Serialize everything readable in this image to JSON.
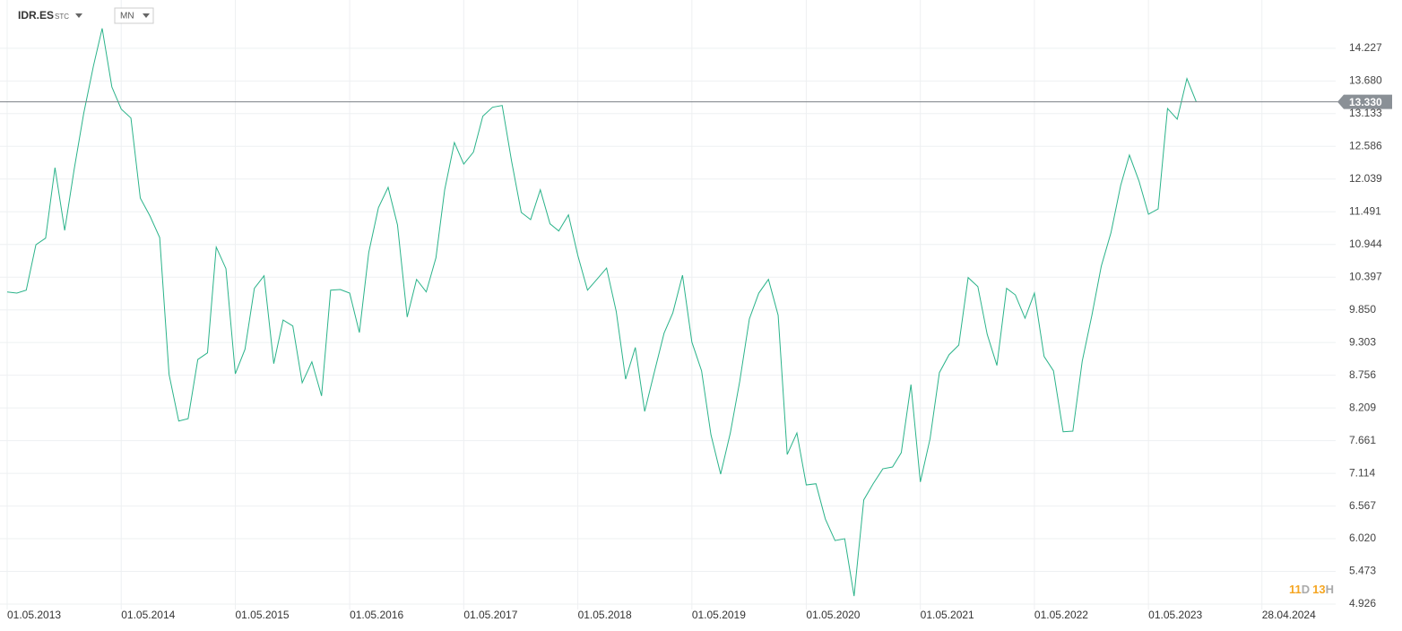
{
  "header": {
    "symbol": "IDR.ES",
    "market": "STC",
    "interval": "MN"
  },
  "countdown": {
    "days": "11",
    "days_unit": "D",
    "hours": "13",
    "hours_unit": "H"
  },
  "chart_data": {
    "type": "line",
    "x": [
      "2013-05-01",
      "2013-06-01",
      "2013-07-01",
      "2013-08-01",
      "2013-09-01",
      "2013-10-01",
      "2013-11-01",
      "2013-12-01",
      "2014-01-01",
      "2014-02-01",
      "2014-03-01",
      "2014-04-01",
      "2014-05-01",
      "2014-06-01",
      "2014-07-01",
      "2014-08-01",
      "2014-09-01",
      "2014-10-01",
      "2014-11-01",
      "2014-12-01",
      "2015-01-01",
      "2015-02-01",
      "2015-03-01",
      "2015-04-01",
      "2015-05-01",
      "2015-06-01",
      "2015-07-01",
      "2015-08-01",
      "2015-09-01",
      "2015-10-01",
      "2015-11-01",
      "2015-12-01",
      "2016-01-01",
      "2016-02-01",
      "2016-03-01",
      "2016-04-01",
      "2016-05-01",
      "2016-06-01",
      "2016-07-01",
      "2016-08-01",
      "2016-09-01",
      "2016-10-01",
      "2016-11-01",
      "2016-12-01",
      "2017-01-01",
      "2017-02-01",
      "2017-03-01",
      "2017-04-01",
      "2017-05-01",
      "2017-06-01",
      "2017-07-01",
      "2017-08-01",
      "2017-09-01",
      "2017-10-01",
      "2017-11-01",
      "2017-12-01",
      "2018-01-01",
      "2018-02-01",
      "2018-03-01",
      "2018-04-01",
      "2018-05-01",
      "2018-06-01",
      "2018-07-01",
      "2018-08-01",
      "2018-09-01",
      "2018-10-01",
      "2018-11-01",
      "2018-12-01",
      "2019-01-01",
      "2019-02-01",
      "2019-03-01",
      "2019-04-01",
      "2019-05-01",
      "2019-06-01",
      "2019-07-01",
      "2019-08-01",
      "2019-09-01",
      "2019-10-01",
      "2019-11-01",
      "2019-12-01",
      "2020-01-01",
      "2020-02-01",
      "2020-03-01",
      "2020-04-01",
      "2020-05-01",
      "2020-06-01",
      "2020-07-01",
      "2020-08-01",
      "2020-09-01",
      "2020-10-01",
      "2020-11-01",
      "2020-12-01",
      "2021-01-01",
      "2021-02-01",
      "2021-03-01",
      "2021-04-01",
      "2021-05-01",
      "2021-06-01",
      "2021-07-01",
      "2021-08-01",
      "2021-09-01",
      "2021-10-01",
      "2021-11-01",
      "2021-12-01",
      "2022-01-01",
      "2022-02-01",
      "2022-03-01",
      "2022-04-01",
      "2022-05-01",
      "2022-06-01",
      "2022-07-01",
      "2022-08-01",
      "2022-09-01",
      "2022-10-01",
      "2022-11-01",
      "2022-12-01",
      "2023-01-01",
      "2023-02-01",
      "2023-03-01",
      "2023-04-01",
      "2023-05-01",
      "2023-06-01",
      "2023-07-01",
      "2023-08-01",
      "2023-09-01",
      "2023-10-01"
    ],
    "series": [
      {
        "name": "IDR.ES",
        "color": "#2bb38a",
        "values": [
          10.15,
          10.13,
          10.18,
          10.94,
          11.05,
          12.23,
          11.18,
          12.19,
          13.14,
          13.93,
          14.56,
          13.58,
          13.21,
          13.06,
          11.72,
          11.42,
          11.06,
          8.77,
          7.99,
          8.03,
          9.02,
          9.13,
          10.9,
          10.54,
          8.78,
          9.19,
          10.21,
          10.42,
          8.95,
          9.68,
          9.58,
          8.63,
          8.98,
          8.41,
          10.18,
          10.19,
          10.13,
          9.47,
          10.81,
          11.56,
          11.9,
          11.27,
          9.73,
          10.36,
          10.15,
          10.72,
          11.86,
          12.65,
          12.29,
          12.49,
          13.09,
          13.24,
          13.27,
          12.34,
          11.48,
          11.36,
          11.86,
          11.29,
          11.17,
          11.44,
          10.76,
          10.18,
          10.36,
          10.55,
          9.82,
          8.69,
          9.22,
          8.15,
          8.81,
          9.46,
          9.8,
          10.43,
          9.31,
          8.83,
          7.76,
          7.1,
          7.79,
          8.65,
          9.7,
          10.13,
          10.36,
          9.76,
          7.43,
          7.79,
          6.92,
          6.94,
          6.35,
          5.99,
          6.02,
          5.06,
          6.67,
          6.94,
          7.19,
          7.22,
          7.46,
          8.6,
          6.97,
          7.69,
          8.8,
          9.1,
          9.26,
          10.39,
          10.24,
          9.44,
          8.92,
          10.21,
          10.1,
          9.71,
          10.13,
          9.07,
          8.83,
          7.81,
          7.82,
          8.99,
          9.76,
          10.58,
          11.14,
          11.93,
          12.44,
          12,
          11.45,
          11.54,
          13.22,
          13.04,
          13.72,
          13.33
        ]
      }
    ],
    "last_price": {
      "value": 13.33,
      "label": "13.330"
    },
    "xlim": [
      "2013-05-01",
      "2024-12-20"
    ],
    "xticks": [
      {
        "value": "2013-05-01",
        "label": "01.05.2013"
      },
      {
        "value": "2014-05-01",
        "label": "01.05.2014"
      },
      {
        "value": "2015-05-01",
        "label": "01.05.2015"
      },
      {
        "value": "2016-05-01",
        "label": "01.05.2016"
      },
      {
        "value": "2017-05-01",
        "label": "01.05.2017"
      },
      {
        "value": "2018-05-01",
        "label": "01.05.2018"
      },
      {
        "value": "2019-05-01",
        "label": "01.05.2019"
      },
      {
        "value": "2020-05-01",
        "label": "01.05.2020"
      },
      {
        "value": "2021-05-01",
        "label": "01.05.2021"
      },
      {
        "value": "2022-05-01",
        "label": "01.05.2022"
      },
      {
        "value": "2023-05-01",
        "label": "01.05.2023"
      },
      {
        "value": "2024-04-28",
        "label": "28.04.2024"
      }
    ],
    "ylim": [
      4.836,
      15.035
    ],
    "yticks": [
      4.926,
      5.473,
      {
        "value": 6.02,
        "label": "6.020"
      },
      6.567,
      7.114,
      7.661,
      8.209,
      8.756,
      9.303,
      {
        "value": 9.85,
        "label": "9.850"
      },
      10.397,
      10.944,
      11.491,
      12.039,
      12.586,
      13.133,
      {
        "value": 13.68,
        "label": "13.680"
      },
      14.227
    ],
    "grid": true
  }
}
